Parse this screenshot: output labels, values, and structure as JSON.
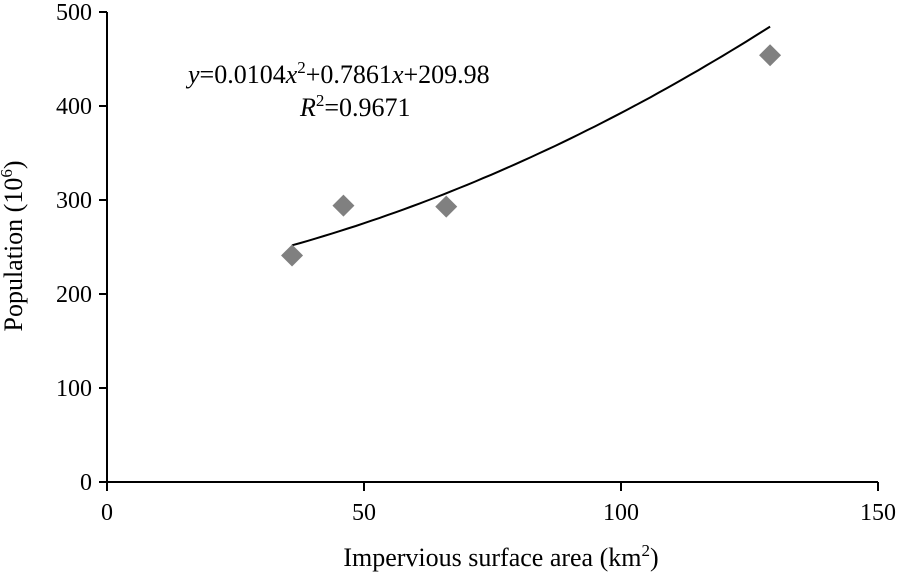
{
  "chart_data": {
    "type": "scatter",
    "xlabel": "Impervious surface area (km",
    "xlabel_sup": "2",
    "xlabel_end": ")",
    "ylabel": "Population (10",
    "ylabel_sup": "6",
    "ylabel_end": ")",
    "xlim": [
      0,
      150
    ],
    "ylim": [
      0,
      500
    ],
    "xticks": [
      0,
      50,
      100,
      150
    ],
    "yticks": [
      0,
      100,
      200,
      300,
      400,
      500
    ],
    "grid": false,
    "marker_color": "#808080",
    "points": [
      {
        "x": 36,
        "y": 241
      },
      {
        "x": 46,
        "y": 294
      },
      {
        "x": 66,
        "y": 293
      },
      {
        "x": 129,
        "y": 454
      }
    ],
    "trendline": {
      "type": "polynomial",
      "coefficients": {
        "a": 0.0104,
        "b": 0.7861,
        "c": 209.98
      },
      "x_range": [
        36,
        129
      ],
      "color": "#000000"
    },
    "equation": {
      "y_var": "y",
      "eq1": "=0.0104",
      "x_var1": "x",
      "sup1": "2",
      "eq2": "+0.7861",
      "x_var2": "x",
      "eq3": "+209.98",
      "r_var": "R",
      "r_sup": "2",
      "r_val": "=0.9671"
    }
  }
}
